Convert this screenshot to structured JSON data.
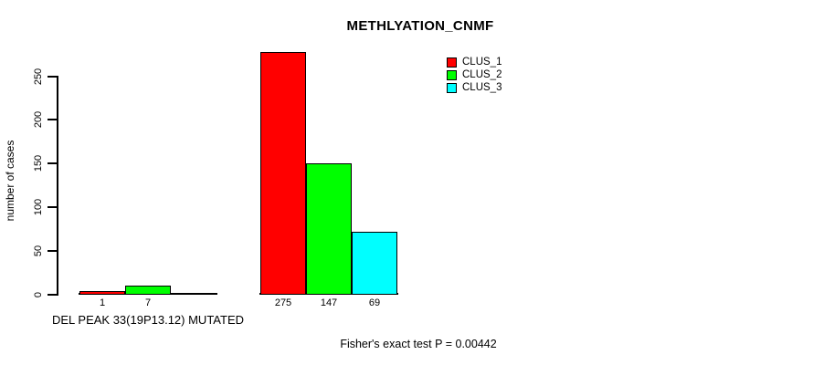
{
  "chart_data": {
    "type": "bar",
    "title": "METHLYATION_CNMF",
    "ylabel": "number of cases",
    "ylim": [
      0,
      250
    ],
    "yticks": [
      0,
      50,
      100,
      150,
      200,
      250
    ],
    "grid": false,
    "background": "#FFFFFF",
    "axis_color": "#000000",
    "legend_position": "top-right",
    "groups": [
      {
        "label": "DEL PEAK 33(19P13.12) MUTATED"
      },
      {
        "label": ""
      }
    ],
    "series": [
      {
        "name": "CLUS_1",
        "color": "#FF0000",
        "values": [
          1,
          275
        ]
      },
      {
        "name": "CLUS_2",
        "color": "#00FF00",
        "values": [
          7,
          147
        ]
      },
      {
        "name": "CLUS_3",
        "color": "#00FFFF",
        "values": [
          0,
          69
        ]
      }
    ],
    "bar_value_labels_shown": true,
    "zero_value_labels_hidden": true,
    "annotation": "Fisher's exact test P = 0.00442"
  }
}
